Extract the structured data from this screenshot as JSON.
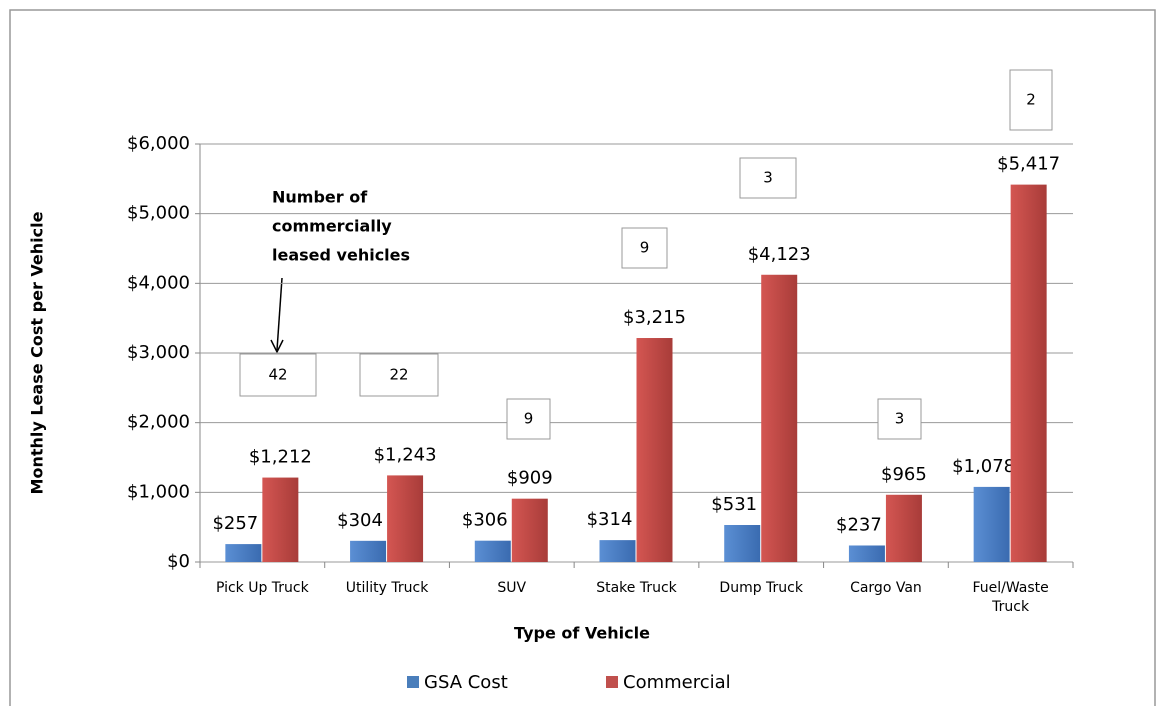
{
  "chart_data": {
    "type": "bar",
    "y_axis_title": "Monthly Lease Cost per Vehicle",
    "x_axis_title": "Type of Vehicle",
    "categories": [
      "Pick Up Truck",
      "Utility Truck",
      "SUV",
      "Stake Truck",
      "Dump Truck",
      "Cargo Van",
      "Fuel/Waste Truck"
    ],
    "series": [
      {
        "name": "GSA Cost",
        "color": "#4a7ebb",
        "values": [
          257,
          304,
          306,
          314,
          531,
          237,
          1078
        ],
        "value_labels": [
          "$257",
          "$304",
          "$306",
          "$314",
          "$531",
          "$237",
          "$1,078"
        ]
      },
      {
        "name": "Commercial",
        "color": "#c0504d",
        "values": [
          1212,
          1243,
          909,
          3215,
          4123,
          965,
          5417
        ],
        "value_labels": [
          "$1,212",
          "$1,243",
          "$909",
          "$3,215",
          "$4,123",
          "$965",
          "$5,417"
        ]
      }
    ],
    "annotation": "Number of commercially leased vehicles",
    "commercial_counts": [
      42,
      22,
      9,
      9,
      3,
      3,
      2
    ],
    "ylim": [
      0,
      6000
    ],
    "yticks": [
      {
        "value": 0,
        "label": "$0"
      },
      {
        "value": 1000,
        "label": "$1,000"
      },
      {
        "value": 2000,
        "label": "$2,000"
      },
      {
        "value": 3000,
        "label": "$3,000"
      },
      {
        "value": 4000,
        "label": "$4,000"
      },
      {
        "value": 5000,
        "label": "$5,000"
      },
      {
        "value": 6000,
        "label": "$6,000"
      }
    ],
    "grid": true,
    "legend": "bottom"
  }
}
